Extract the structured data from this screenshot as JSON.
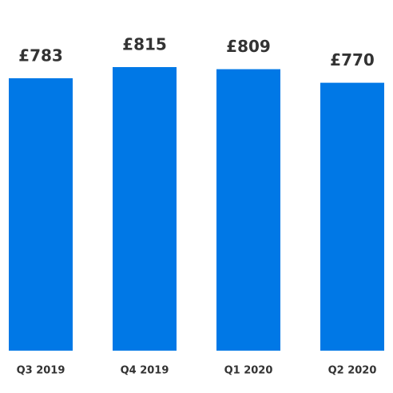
{
  "chart_data": {
    "type": "bar",
    "categories": [
      "Q3 2019",
      "Q4 2019",
      "Q1 2020",
      "Q2 2020"
    ],
    "values": [
      783,
      815,
      809,
      770
    ],
    "value_labels": [
      "£783",
      "£815",
      "£809",
      "£770"
    ],
    "color": "#0078e6"
  }
}
